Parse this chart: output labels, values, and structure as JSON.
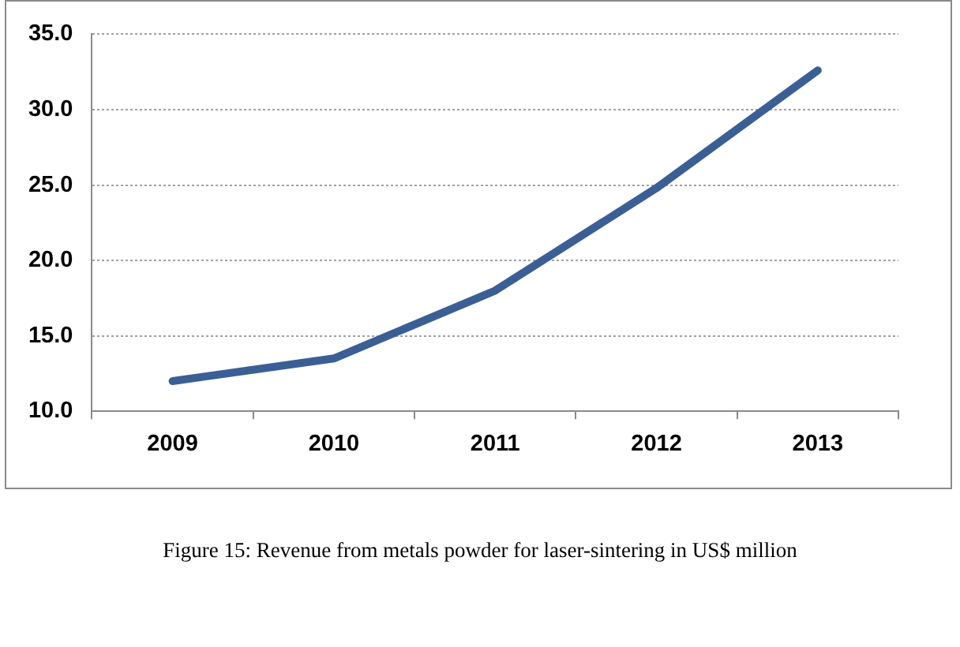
{
  "chart_data": {
    "type": "line",
    "categories": [
      "2009",
      "2010",
      "2011",
      "2012",
      "2013"
    ],
    "series": [
      {
        "color": "#3b5f95",
        "values": [
          12.0,
          13.5,
          18.0,
          24.8,
          32.6
        ]
      }
    ],
    "ylim": [
      10,
      35
    ],
    "yticks": [
      {
        "value": 10,
        "label": "10.0"
      },
      {
        "value": 15,
        "label": "15.0"
      },
      {
        "value": 20,
        "label": "20.0"
      },
      {
        "value": 25,
        "label": "25.0"
      },
      {
        "value": 30,
        "label": "30.0"
      },
      {
        "value": 35,
        "label": "35.0"
      }
    ],
    "grid": "y",
    "marker": "none",
    "line_style": "solid",
    "annotations": [
      "Figure 15: Revenue from metals powder for laser-sintering in US$ million"
    ]
  }
}
